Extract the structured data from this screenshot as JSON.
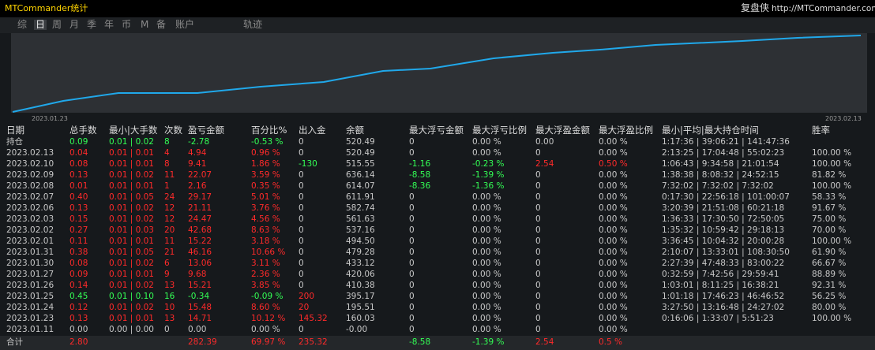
{
  "header": {
    "title": "MTCommander统计",
    "brand": "复盘侠",
    "url": "http://MTCommander.com"
  },
  "tabs": [
    "综",
    "日",
    "周",
    "月",
    "季",
    "年",
    "币",
    "M",
    "备",
    "账户"
  ],
  "track_tab": "轨迹",
  "chart": {
    "x_start": "2023.01.23",
    "x_end": "2023.02.13"
  },
  "table": {
    "columns": [
      "日期",
      "总手数",
      "最小|大手数",
      "次数",
      "盈亏金额",
      "百分比%",
      "出入金",
      "余额",
      "最大浮亏金额",
      "最大浮亏比例",
      "最大浮盈金额",
      "最大浮盈比例",
      "最小|平均|最大持仓时间",
      "胜率"
    ],
    "holding": [
      "持仓",
      "0.09",
      "0.01 | 0.02",
      "8",
      "-2.78",
      "-0.53 %",
      "0",
      "520.49",
      "0",
      "0.00 %",
      "0.00",
      "0.00 %",
      "1:17:36 | 39:06:21 | 141:47:36",
      null
    ],
    "rows": [
      [
        "2023.02.13",
        "0.04",
        "0.01 | 0.01",
        "4",
        "4.94",
        "0.96 %",
        "0",
        "520.49",
        "0",
        "0.00 %",
        "0",
        "0.00 %",
        "2:13:25 | 17:04:48 | 55:02:23",
        "100.00 %"
      ],
      [
        "2023.02.10",
        "0.08",
        "0.01 | 0.01",
        "8",
        "9.41",
        "1.86 %",
        "-130",
        "515.55",
        "-1.16",
        "-0.23 %",
        "2.54",
        "0.50 %",
        "1:06:43 | 9:34:58 | 21:01:54",
        "100.00 %"
      ],
      [
        "2023.02.09",
        "0.13",
        "0.01 | 0.02",
        "11",
        "22.07",
        "3.59 %",
        "0",
        "636.14",
        "-8.58",
        "-1.39 %",
        "0",
        "0.00 %",
        "1:38:38 | 8:08:32 | 24:52:15",
        "81.82 %"
      ],
      [
        "2023.02.08",
        "0.01",
        "0.01 | 0.01",
        "1",
        "2.16",
        "0.35 %",
        "0",
        "614.07",
        "-8.36",
        "-1.36 %",
        "0",
        "0.00 %",
        "7:32:02 | 7:32:02 | 7:32:02",
        "100.00 %"
      ],
      [
        "2023.02.07",
        "0.40",
        "0.01 | 0.05",
        "24",
        "29.17",
        "5.01 %",
        "0",
        "611.91",
        "0",
        "0.00 %",
        "0",
        "0.00 %",
        "0:17:30 | 22:56:18 | 101:00:07",
        "58.33 %"
      ],
      [
        "2023.02.06",
        "0.13",
        "0.01 | 0.02",
        "12",
        "21.11",
        "3.76 %",
        "0",
        "582.74",
        "0",
        "0.00 %",
        "0",
        "0.00 %",
        "3:20:39 | 21:51:08 | 60:21:18",
        "91.67 %"
      ],
      [
        "2023.02.03",
        "0.15",
        "0.01 | 0.02",
        "12",
        "24.47",
        "4.56 %",
        "0",
        "561.63",
        "0",
        "0.00 %",
        "0",
        "0.00 %",
        "1:36:33 | 17:30:50 | 72:50:05",
        "75.00 %"
      ],
      [
        "2023.02.02",
        "0.27",
        "0.01 | 0.03",
        "20",
        "42.68",
        "8.63 %",
        "0",
        "537.16",
        "0",
        "0.00 %",
        "0",
        "0.00 %",
        "1:35:32 | 10:59:42 | 29:18:13",
        "70.00 %"
      ],
      [
        "2023.02.01",
        "0.11",
        "0.01 | 0.01",
        "11",
        "15.22",
        "3.18 %",
        "0",
        "494.50",
        "0",
        "0.00 %",
        "0",
        "0.00 %",
        "3:36:45 | 10:04:32 | 20:00:28",
        "100.00 %"
      ],
      [
        "2023.01.31",
        "0.38",
        "0.01 | 0.05",
        "21",
        "46.16",
        "10.66 %",
        "0",
        "479.28",
        "0",
        "0.00 %",
        "0",
        "0.00 %",
        "2:10:07 | 13:33:01 | 108:30:50",
        "61.90 %"
      ],
      [
        "2023.01.30",
        "0.08",
        "0.01 | 0.02",
        "6",
        "13.06",
        "3.11 %",
        "0",
        "433.12",
        "0",
        "0.00 %",
        "0",
        "0.00 %",
        "2:27:39 | 47:48:33 | 83:00:22",
        "66.67 %"
      ],
      [
        "2023.01.27",
        "0.09",
        "0.01 | 0.01",
        "9",
        "9.68",
        "2.36 %",
        "0",
        "420.06",
        "0",
        "0.00 %",
        "0",
        "0.00 %",
        "0:32:59 | 7:42:56 | 29:59:41",
        "88.89 %"
      ],
      [
        "2023.01.26",
        "0.14",
        "0.01 | 0.02",
        "13",
        "15.21",
        "3.85 %",
        "0",
        "410.38",
        "0",
        "0.00 %",
        "0",
        "0.00 %",
        "1:03:01 | 8:11:25 | 16:38:21",
        "92.31 %"
      ],
      [
        "2023.01.25",
        "0.45",
        "0.01 | 0.10",
        "16",
        "-0.34",
        "-0.09 %",
        "200",
        "395.17",
        "0",
        "0.00 %",
        "0",
        "0.00 %",
        "1:01:18 | 17:46:23 | 46:46:52",
        "56.25 %"
      ],
      [
        "2023.01.24",
        "0.12",
        "0.01 | 0.02",
        "10",
        "15.48",
        "8.60 %",
        "20",
        "195.51",
        "0",
        "0.00 %",
        "0",
        "0.00 %",
        "3:27:50 | 13:16:48 | 24:27:02",
        "80.00 %"
      ],
      [
        "2023.01.23",
        "0.13",
        "0.01 | 0.01",
        "13",
        "14.71",
        "10.12 %",
        "145.32",
        "160.03",
        "0",
        "0.00 %",
        "0",
        "0.00 %",
        "0:16:06 | 1:33:07 | 5:51:23",
        "100.00 %"
      ],
      [
        "2023.01.11",
        "0.00",
        "0.00 | 0.00",
        "0",
        "0.00",
        "0.00 %",
        "0",
        "-0.00",
        "0",
        "0.00 %",
        "0",
        "0.00 %",
        null,
        null
      ]
    ],
    "total": [
      "合计",
      "2.80",
      null,
      null,
      "282.39",
      "69.97 %",
      "235.32",
      null,
      "-8.58",
      "-1.39 %",
      "2.54",
      "0.5 %",
      null,
      null
    ]
  }
}
